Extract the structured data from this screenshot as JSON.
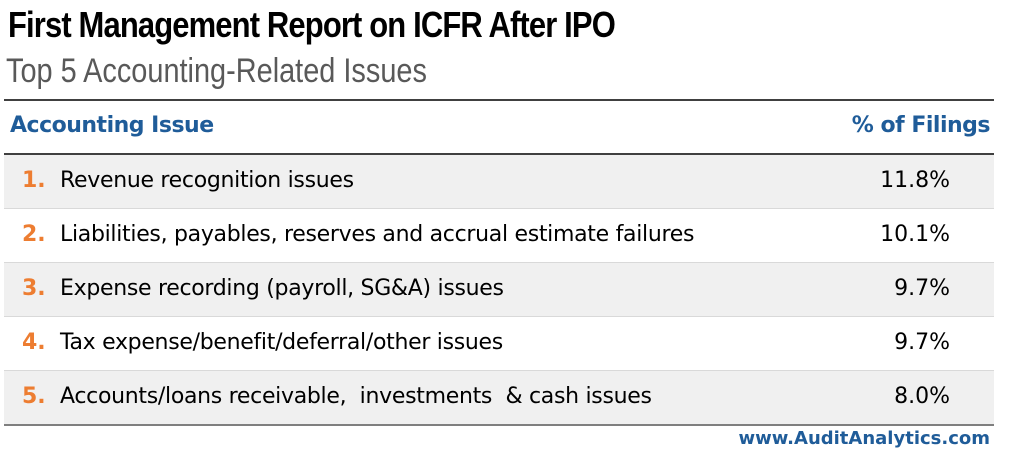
{
  "header": {
    "title": "First Management Report on ICFR After IPO",
    "subtitle": "Top 5 Accounting-Related Issues"
  },
  "table": {
    "columns": [
      "Accounting Issue",
      "% of Filings"
    ],
    "rows": [
      {
        "rank": "1.",
        "issue": "Revenue recognition issues",
        "percent": "11.8%"
      },
      {
        "rank": "2.",
        "issue": "Liabilities, payables, reserves and accrual estimate failures",
        "percent": "10.1%"
      },
      {
        "rank": "3.",
        "issue": "Expense recording (payroll, SG&A) issues",
        "percent": "9.7%"
      },
      {
        "rank": "4.",
        "issue": "Tax expense/benefit/deferral/other issues",
        "percent": "9.7%"
      },
      {
        "rank": "5.",
        "issue": "Accounts/loans receivable,  investments  & cash issues",
        "percent": "8.0%"
      }
    ]
  },
  "footer": {
    "source": "www.AuditAnalytics.com"
  },
  "colors": {
    "header_blue": "#1f5c99",
    "rank_orange": "#ed7d31",
    "row_shade": "#f0f0f0",
    "subtitle_gray": "#595959"
  }
}
